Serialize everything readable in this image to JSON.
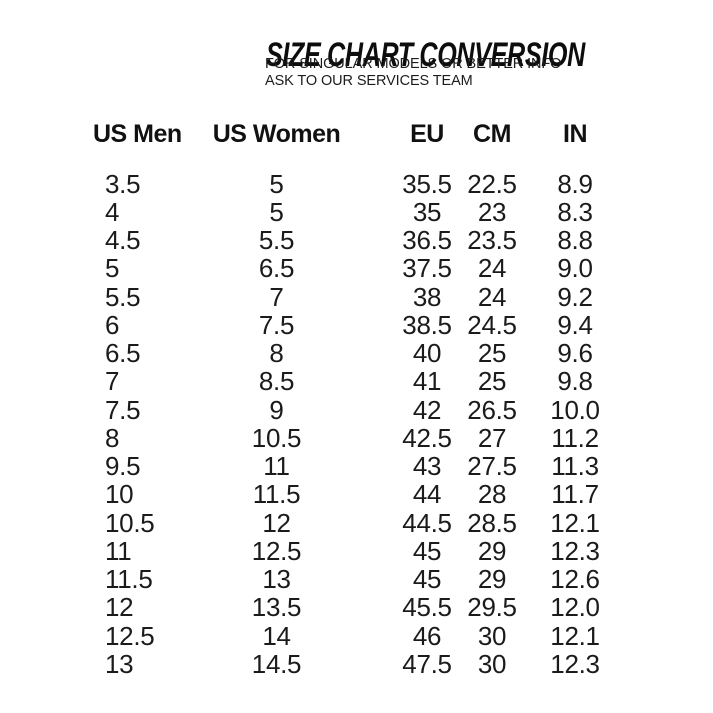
{
  "header": {
    "title": "SIZE CHART CONVERSION",
    "subtitle_line1": "FOR SINGULAR MODELS OR BETTER INFO",
    "subtitle_line2": "ASK TO OUR SERVICES TEAM"
  },
  "colors": {
    "text": "#1b1b1b",
    "title": "#0d0d0d",
    "background": "#ffffff"
  },
  "chart_data": {
    "type": "table",
    "title": "SIZE CHART CONVERSION",
    "columns": [
      "US Men",
      "US Women",
      "EU",
      "CM",
      "IN"
    ],
    "rows": [
      [
        "3.5",
        "5",
        "35.5",
        "22.5",
        "8.9"
      ],
      [
        "4",
        "5",
        "35",
        "23",
        "8.3"
      ],
      [
        "4.5",
        "5.5",
        "36.5",
        "23.5",
        "8.8"
      ],
      [
        "5",
        "6.5",
        "37.5",
        "24",
        "9.0"
      ],
      [
        "5.5",
        "7",
        "38",
        "24",
        "9.2"
      ],
      [
        "6",
        "7.5",
        "38.5",
        "24.5",
        "9.4"
      ],
      [
        "6.5",
        "8",
        "40",
        "25",
        "9.6"
      ],
      [
        "7",
        "8.5",
        "41",
        "25",
        "9.8"
      ],
      [
        "7.5",
        "9",
        "42",
        "26.5",
        "10.0"
      ],
      [
        "8",
        "10.5",
        "42.5",
        "27",
        "11.2"
      ],
      [
        "9.5",
        "11",
        "43",
        "27.5",
        "11.3"
      ],
      [
        "10",
        "11.5",
        "44",
        "28",
        "11.7"
      ],
      [
        "10.5",
        "12",
        "44.5",
        "28.5",
        "12.1"
      ],
      [
        "11",
        "12.5",
        "45",
        "29",
        "12.3"
      ],
      [
        "11.5",
        "13",
        "45",
        "29",
        "12.6"
      ],
      [
        "12",
        "13.5",
        "45.5",
        "29.5",
        "12.0"
      ],
      [
        "12.5",
        "14",
        "46",
        "30",
        "12.1"
      ],
      [
        "13",
        "14.5",
        "47.5",
        "30",
        "12.3"
      ]
    ]
  }
}
